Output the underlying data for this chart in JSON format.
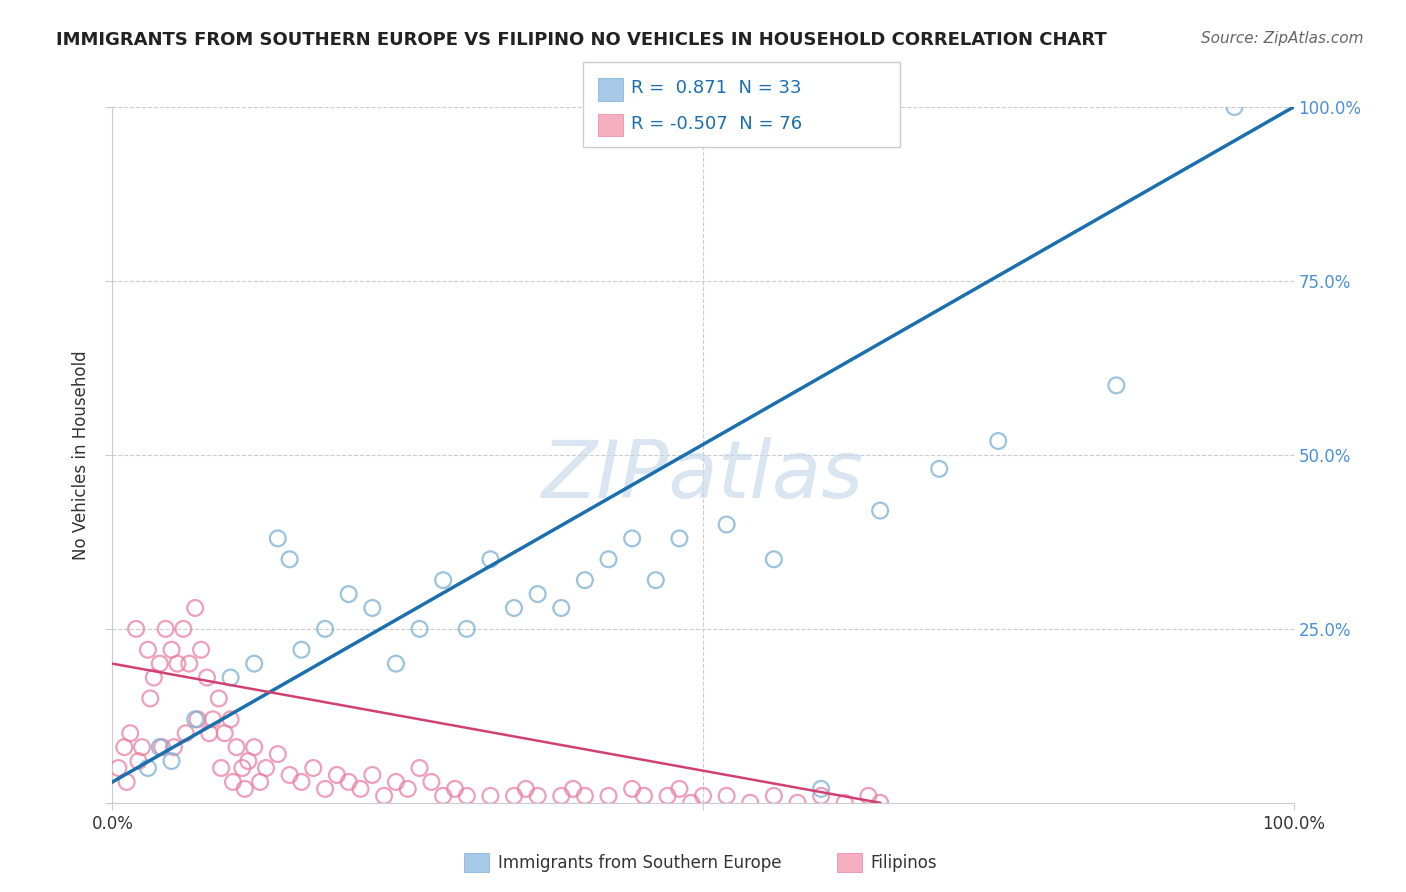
{
  "title": "IMMIGRANTS FROM SOUTHERN EUROPE VS FILIPINO NO VEHICLES IN HOUSEHOLD CORRELATION CHART",
  "source": "Source: ZipAtlas.com",
  "ylabel": "No Vehicles in Household",
  "xlim": [
    0,
    100
  ],
  "ylim": [
    0,
    100
  ],
  "blue_color": "#a8c8e8",
  "blue_edge": "#7aafd4",
  "pink_color": "#f4b0c0",
  "pink_edge": "#e880a0",
  "line_blue": "#1a6faf",
  "line_pink": "#d04070",
  "grid_color": "#cccccc",
  "right_tick_color": "#4a90d9",
  "title_color": "#222222",
  "source_color": "#666666",
  "watermark_color": "#c5d8ea",
  "blue_x": [
    3,
    4,
    5,
    7,
    10,
    12,
    14,
    15,
    16,
    18,
    20,
    22,
    24,
    26,
    28,
    30,
    32,
    34,
    36,
    38,
    40,
    42,
    44,
    46,
    48,
    52,
    56,
    60,
    65,
    70,
    75,
    85,
    95
  ],
  "blue_y": [
    5,
    8,
    6,
    12,
    18,
    20,
    38,
    35,
    22,
    25,
    30,
    28,
    20,
    25,
    32,
    25,
    35,
    28,
    30,
    28,
    32,
    35,
    38,
    32,
    38,
    40,
    35,
    2,
    42,
    48,
    52,
    60,
    100
  ],
  "pink_x": [
    0.5,
    1.0,
    1.2,
    1.5,
    2.0,
    2.2,
    2.5,
    3.0,
    3.2,
    3.5,
    4.0,
    4.2,
    4.5,
    5.0,
    5.2,
    5.5,
    6.0,
    6.2,
    6.5,
    7.0,
    7.2,
    7.5,
    8.0,
    8.2,
    8.5,
    9.0,
    9.2,
    9.5,
    10.0,
    10.2,
    10.5,
    11.0,
    11.2,
    11.5,
    12.0,
    12.5,
    13.0,
    14.0,
    15.0,
    16.0,
    17.0,
    18.0,
    19.0,
    20.0,
    21.0,
    22.0,
    23.0,
    24.0,
    25.0,
    26.0,
    27.0,
    28.0,
    29.0,
    30.0,
    32.0,
    34.0,
    35.0,
    36.0,
    38.0,
    39.0,
    40.0,
    42.0,
    44.0,
    45.0,
    47.0,
    48.0,
    49.0,
    50.0,
    52.0,
    54.0,
    56.0,
    58.0,
    60.0,
    62.0,
    64.0,
    65.0
  ],
  "pink_y": [
    5,
    8,
    3,
    10,
    25,
    6,
    8,
    22,
    15,
    18,
    20,
    8,
    25,
    22,
    8,
    20,
    25,
    10,
    20,
    28,
    12,
    22,
    18,
    10,
    12,
    15,
    5,
    10,
    12,
    3,
    8,
    5,
    2,
    6,
    8,
    3,
    5,
    7,
    4,
    3,
    5,
    2,
    4,
    3,
    2,
    4,
    1,
    3,
    2,
    5,
    3,
    1,
    2,
    1,
    1,
    1,
    2,
    1,
    1,
    2,
    1,
    1,
    2,
    1,
    1,
    2,
    0,
    1,
    1,
    0,
    1,
    0,
    1,
    0,
    1,
    0
  ],
  "blue_line_x": [
    0,
    100
  ],
  "blue_line_y": [
    3,
    100
  ],
  "pink_line_x": [
    0,
    65
  ],
  "pink_line_y": [
    20,
    0
  ]
}
